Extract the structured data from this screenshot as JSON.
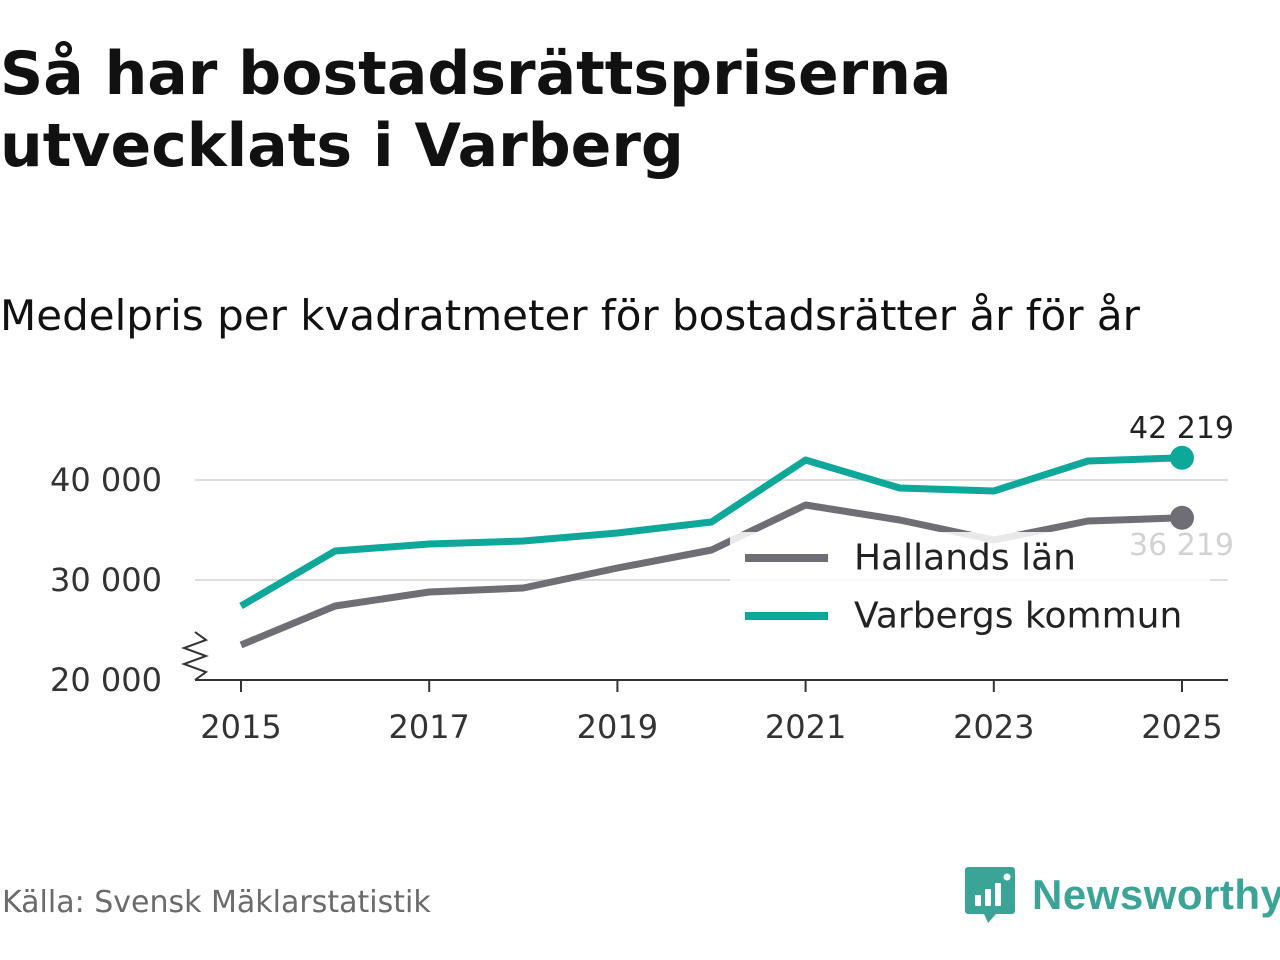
{
  "title": "Så har bostadsrättspriserna utvecklats i Varberg",
  "subtitle": "Medelpris per kvadratmeter för bostadsrätter år för år",
  "source": "Källa: Svensk Mäklarstatistik",
  "brand": "Newsworthy",
  "colors": {
    "hallands": "#6f6e74",
    "varberg": "#0ea89a",
    "grid": "#dddddd",
    "axis": "#333333",
    "brand": "#3aa597"
  },
  "chart_data": {
    "type": "line",
    "title": "Medelpris per kvadratmeter för bostadsrätter år för år",
    "xlabel": "",
    "ylabel": "",
    "x": [
      2015,
      2016,
      2017,
      2018,
      2019,
      2020,
      2021,
      2022,
      2023,
      2024,
      2025
    ],
    "ylim": [
      20000,
      42000
    ],
    "y_ticks": [
      20000,
      30000,
      40000
    ],
    "y_tick_labels": [
      "20 000",
      "30 000",
      "40 000"
    ],
    "x_ticks": [
      2015,
      2017,
      2019,
      2021,
      2023,
      2025
    ],
    "x_tick_labels": [
      "2015",
      "2017",
      "2019",
      "2021",
      "2023",
      "2025"
    ],
    "grid": true,
    "axis_break": true,
    "legend_position": "right",
    "series": [
      {
        "name": "Hallands län",
        "color": "#6f6e74",
        "values": [
          23500,
          27400,
          28800,
          29200,
          31200,
          33000,
          37500,
          36000,
          34000,
          35900,
          36219
        ],
        "end_label": "36 219"
      },
      {
        "name": "Varbergs kommun",
        "color": "#0ea89a",
        "values": [
          27400,
          32900,
          33600,
          33900,
          34700,
          35800,
          42000,
          39200,
          38900,
          41900,
          42219
        ],
        "end_label": "42 219"
      }
    ]
  }
}
